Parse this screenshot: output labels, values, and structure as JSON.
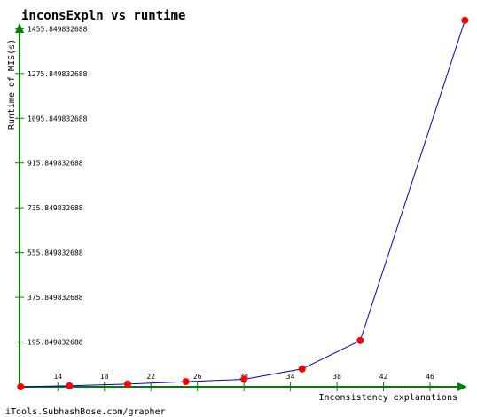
{
  "chart_data": {
    "type": "line",
    "title": "inconsExpln vs runtime",
    "xlabel": "Inconsistency explanations",
    "ylabel": "Runtime of MIS(s)",
    "x_ticks": [
      14,
      18,
      22,
      26,
      30,
      34,
      38,
      42,
      46
    ],
    "x_tick_labels": [
      "14",
      "18",
      "22",
      "26",
      "30",
      "34",
      "38",
      "42",
      "46"
    ],
    "y_ticks": [
      195.849832688,
      375.849832688,
      555.849832688,
      735.849832688,
      915.849832688,
      1095.849832688,
      1275.849832688,
      1455.849832688
    ],
    "y_tick_labels": [
      "195.849832688",
      "375.849832688",
      "555.849832688",
      "735.849832688",
      "915.849832688",
      "1095.849832688",
      "1275.849832688",
      "1455.849832688"
    ],
    "xlim": [
      10.7,
      49.2
    ],
    "ylim": [
      15.849832688,
      1475
    ],
    "grid": false,
    "series": [
      {
        "x": [
          10.8,
          15,
          20,
          25,
          30,
          35,
          40,
          49
        ],
        "y": [
          16,
          20,
          27,
          37,
          46,
          88,
          202,
          1490
        ]
      }
    ],
    "colors": {
      "axis": "#008000",
      "line": "#0000cc",
      "marker": "#ff0000",
      "text": "#000000"
    }
  },
  "footer": {
    "credit": "iTools.SubhashBose.com/grapher"
  }
}
